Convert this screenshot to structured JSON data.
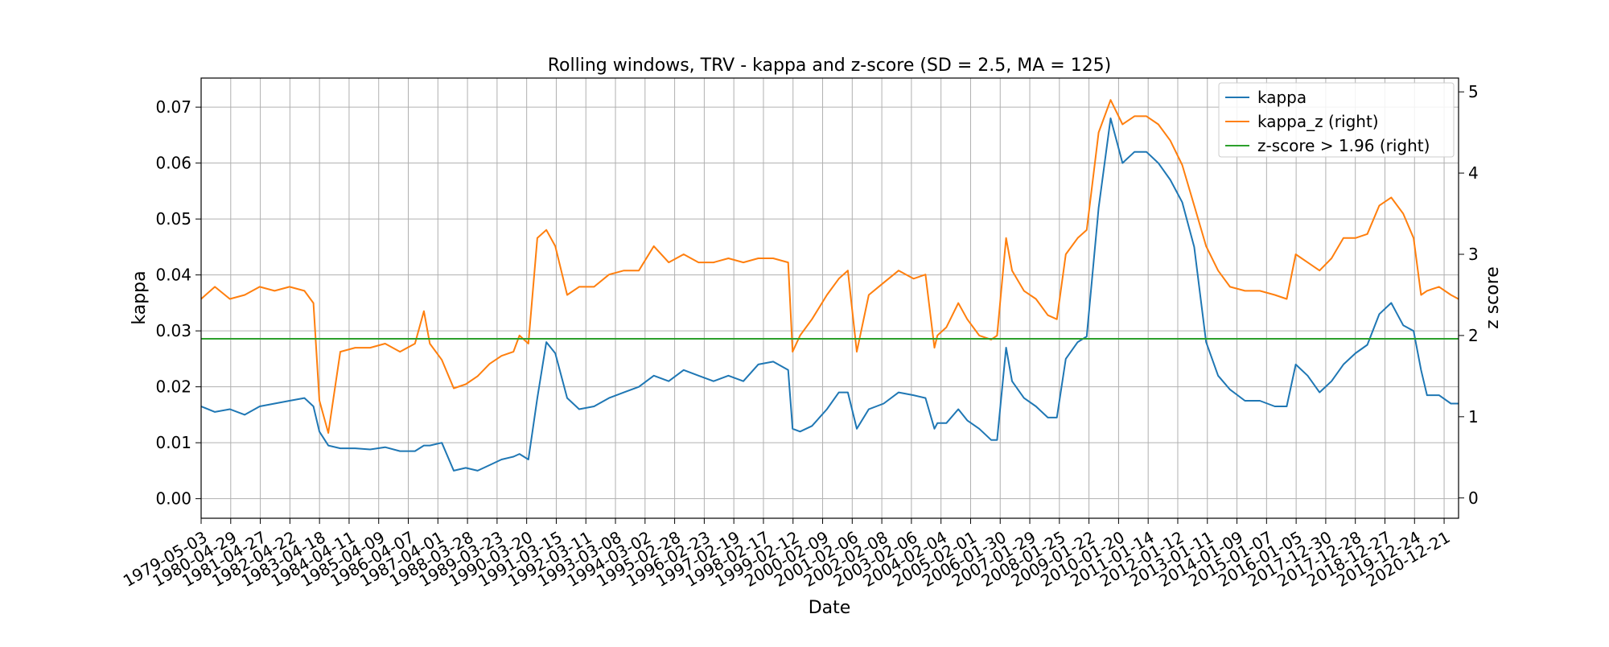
{
  "chart_data": {
    "type": "line",
    "title": "Rolling windows, TRV - kappa and z-score (SD = 2.5, MA = 125)",
    "xlabel": "Date",
    "ylabel": "kappa",
    "ylabel_right": "z score",
    "ylim": [
      -0.0035,
      0.0752
    ],
    "ylim_right": [
      -0.25,
      5.17
    ],
    "xlim": [
      "1979-05-03",
      "2021-06-15"
    ],
    "grid": true,
    "legend_position": "top-right",
    "colors": {
      "kappa": "#1f77b4",
      "kappa_z": "#ff7f0e",
      "threshold": "#2ca02c"
    },
    "y_ticks": [
      "0.00",
      "0.01",
      "0.02",
      "0.03",
      "0.04",
      "0.05",
      "0.06",
      "0.07"
    ],
    "y_tick_values": [
      0,
      0.01,
      0.02,
      0.03,
      0.04,
      0.05,
      0.06,
      0.07
    ],
    "y_right_ticks": [
      "0",
      "1",
      "2",
      "3",
      "4",
      "5"
    ],
    "y_right_tick_values": [
      0,
      1,
      2,
      3,
      4,
      5
    ],
    "x_ticks": [
      "1979-05-03",
      "1980-04-29",
      "1981-04-27",
      "1982-04-22",
      "1983-04-18",
      "1984-04-11",
      "1985-04-09",
      "1986-04-07",
      "1987-04-01",
      "1988-03-28",
      "1989-03-23",
      "1990-03-20",
      "1991-03-15",
      "1992-03-11",
      "1993-03-08",
      "1994-03-02",
      "1995-02-28",
      "1996-02-23",
      "1997-02-19",
      "1998-02-17",
      "1999-02-12",
      "2000-02-09",
      "2001-02-06",
      "2002-02-08",
      "2003-02-06",
      "2004-02-04",
      "2005-02-01",
      "2006-01-30",
      "2007-01-29",
      "2008-01-25",
      "2009-01-22",
      "2010-01-20",
      "2011-01-14",
      "2012-01-12",
      "2013-01-11",
      "2014-01-09",
      "2015-01-07",
      "2016-01-05",
      "2017-12-30",
      "2017-12-28",
      "2018-12-27",
      "2019-12-24",
      "2020-12-21"
    ],
    "series": [
      {
        "name": "kappa",
        "axis": "left",
        "x": [
          1979.34,
          1979.8,
          1980.3,
          1980.8,
          1981.3,
          1981.8,
          1982.3,
          1982.8,
          1983.1,
          1983.3,
          1983.6,
          1984.0,
          1984.5,
          1985.0,
          1985.5,
          1986.0,
          1986.5,
          1986.8,
          1987.0,
          1987.4,
          1987.8,
          1988.2,
          1988.6,
          1989.0,
          1989.4,
          1989.8,
          1990.0,
          1990.3,
          1990.6,
          1990.9,
          1991.2,
          1991.6,
          1992.0,
          1992.5,
          1993.0,
          1993.5,
          1994.0,
          1994.5,
          1995.0,
          1995.5,
          1996.0,
          1996.5,
          1997.0,
          1997.5,
          1998.0,
          1998.5,
          1999.0,
          1999.15,
          1999.4,
          1999.8,
          2000.3,
          2000.7,
          2001.0,
          2001.3,
          2001.7,
          2002.2,
          2002.7,
          2003.2,
          2003.6,
          2003.9,
          2004.0,
          2004.3,
          2004.7,
          2005.0,
          2005.4,
          2005.8,
          2006.0,
          2006.3,
          2006.5,
          2006.9,
          2007.3,
          2007.7,
          2008.0,
          2008.3,
          2008.7,
          2009.0,
          2009.4,
          2009.8,
          2010.2,
          2010.6,
          2011.0,
          2011.4,
          2011.8,
          2012.2,
          2012.6,
          2013.0,
          2013.4,
          2013.8,
          2014.3,
          2014.8,
          2015.3,
          2015.7,
          2016.0,
          2016.4,
          2016.8,
          2017.2,
          2017.6,
          2018.0,
          2018.4,
          2018.8,
          2019.2,
          2019.6,
          2019.95,
          2020.2,
          2020.4,
          2020.8,
          2021.2,
          2021.45
        ],
        "values": [
          0.0165,
          0.0155,
          0.016,
          0.015,
          0.0165,
          0.017,
          0.0175,
          0.018,
          0.0165,
          0.012,
          0.0095,
          0.009,
          0.009,
          0.0088,
          0.0092,
          0.0085,
          0.0085,
          0.0095,
          0.0095,
          0.01,
          0.005,
          0.0055,
          0.005,
          0.006,
          0.007,
          0.0075,
          0.008,
          0.007,
          0.018,
          0.028,
          0.026,
          0.018,
          0.016,
          0.0165,
          0.018,
          0.019,
          0.02,
          0.022,
          0.021,
          0.023,
          0.022,
          0.021,
          0.022,
          0.021,
          0.024,
          0.0245,
          0.023,
          0.0125,
          0.012,
          0.013,
          0.016,
          0.019,
          0.019,
          0.0125,
          0.016,
          0.017,
          0.019,
          0.0185,
          0.018,
          0.0125,
          0.0135,
          0.0135,
          0.016,
          0.014,
          0.0125,
          0.0105,
          0.0105,
          0.027,
          0.021,
          0.018,
          0.0165,
          0.0145,
          0.0145,
          0.025,
          0.028,
          0.029,
          0.052,
          0.068,
          0.06,
          0.062,
          0.062,
          0.06,
          0.057,
          0.053,
          0.045,
          0.028,
          0.022,
          0.0195,
          0.0175,
          0.0175,
          0.0165,
          0.0165,
          0.024,
          0.022,
          0.019,
          0.021,
          0.024,
          0.026,
          0.0275,
          0.033,
          0.035,
          0.031,
          0.03,
          0.023,
          0.0185,
          0.0185,
          0.017,
          0.017
        ]
      },
      {
        "name": "kappa_z (right)",
        "axis": "right",
        "x": [
          1979.34,
          1979.8,
          1980.3,
          1980.8,
          1981.3,
          1981.8,
          1982.3,
          1982.8,
          1983.1,
          1983.3,
          1983.6,
          1984.0,
          1984.5,
          1985.0,
          1985.5,
          1986.0,
          1986.5,
          1986.8,
          1987.0,
          1987.4,
          1987.8,
          1988.2,
          1988.6,
          1989.0,
          1989.4,
          1989.8,
          1990.0,
          1990.3,
          1990.6,
          1990.9,
          1991.2,
          1991.6,
          1992.0,
          1992.5,
          1993.0,
          1993.5,
          1994.0,
          1994.5,
          1995.0,
          1995.5,
          1996.0,
          1996.5,
          1997.0,
          1997.5,
          1998.0,
          1998.5,
          1999.0,
          1999.15,
          1999.4,
          1999.8,
          2000.3,
          2000.7,
          2001.0,
          2001.3,
          2001.7,
          2002.2,
          2002.7,
          2003.2,
          2003.6,
          2003.9,
          2004.0,
          2004.3,
          2004.7,
          2005.0,
          2005.4,
          2005.8,
          2006.0,
          2006.3,
          2006.5,
          2006.9,
          2007.3,
          2007.7,
          2008.0,
          2008.3,
          2008.7,
          2009.0,
          2009.4,
          2009.8,
          2010.2,
          2010.6,
          2011.0,
          2011.4,
          2011.8,
          2012.2,
          2012.6,
          2013.0,
          2013.4,
          2013.8,
          2014.3,
          2014.8,
          2015.3,
          2015.7,
          2016.0,
          2016.4,
          2016.8,
          2017.2,
          2017.6,
          2018.0,
          2018.4,
          2018.8,
          2019.2,
          2019.6,
          2019.95,
          2020.2,
          2020.4,
          2020.8,
          2021.2,
          2021.45
        ],
        "values": [
          2.45,
          2.6,
          2.45,
          2.5,
          2.6,
          2.55,
          2.6,
          2.55,
          2.4,
          1.2,
          0.8,
          1.8,
          1.85,
          1.85,
          1.9,
          1.8,
          1.9,
          2.3,
          1.9,
          1.7,
          1.35,
          1.4,
          1.5,
          1.65,
          1.75,
          1.8,
          2.0,
          1.9,
          3.2,
          3.3,
          3.1,
          2.5,
          2.6,
          2.6,
          2.75,
          2.8,
          2.8,
          3.1,
          2.9,
          3.0,
          2.9,
          2.9,
          2.95,
          2.9,
          2.95,
          2.95,
          2.9,
          1.8,
          2.0,
          2.2,
          2.5,
          2.7,
          2.8,
          1.8,
          2.5,
          2.65,
          2.8,
          2.7,
          2.75,
          1.85,
          2.0,
          2.1,
          2.4,
          2.2,
          2.0,
          1.95,
          2.0,
          3.2,
          2.8,
          2.55,
          2.45,
          2.25,
          2.2,
          3.0,
          3.2,
          3.3,
          4.5,
          4.9,
          4.6,
          4.7,
          4.7,
          4.6,
          4.4,
          4.1,
          3.6,
          3.1,
          2.8,
          2.6,
          2.55,
          2.55,
          2.5,
          2.45,
          3.0,
          2.9,
          2.8,
          2.95,
          3.2,
          3.2,
          3.25,
          3.6,
          3.7,
          3.5,
          3.2,
          2.5,
          2.55,
          2.6,
          2.5,
          2.45
        ]
      },
      {
        "name": "z-score > 1.96 (right)",
        "axis": "right",
        "x": [
          1979.34,
          2021.45
        ],
        "values": [
          1.96,
          1.96
        ]
      }
    ]
  }
}
